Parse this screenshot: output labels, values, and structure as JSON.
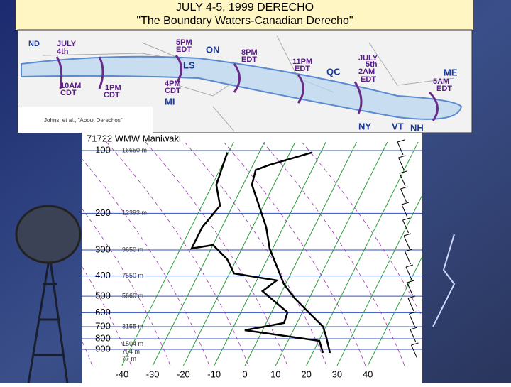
{
  "slide": {
    "title": "JULY 4-5, 1999 DERECHO",
    "subtitle": "\"The Boundary Waters-Canadian Derecho\"",
    "map": {
      "labels": [
        "ND",
        "JULY",
        "4th",
        "10AM",
        "CDT",
        "1PM",
        "CDT",
        "5PM",
        "EDT",
        "ON",
        "8PM",
        "EDT",
        "LS",
        "4PM",
        "CDT",
        "MI",
        "11PM",
        "EDT",
        "QC",
        "JULY",
        "5th",
        "2AM",
        "EDT",
        "ME",
        "5AM",
        "EDT",
        "NY",
        "VT",
        "NH"
      ],
      "credit": "Johns, et al., \"About Derechos\""
    },
    "sounding": {
      "station": "71722 WMW Maniwaki",
      "pressure_ticks": [
        100,
        200,
        300,
        400,
        500,
        600,
        700,
        800,
        900
      ],
      "height_labels": [
        {
          "value": 100,
          "label": "16650 m"
        },
        {
          "value": 200,
          "label": "12393 m"
        },
        {
          "value": 300,
          "label": "9650 m"
        },
        {
          "value": 400,
          "label": "7550 m"
        },
        {
          "value": 500,
          "label": "5660 m"
        },
        {
          "value": 700,
          "label": "3155 m"
        },
        {
          "value": 850,
          "label": "1504 m"
        },
        {
          "value": 925,
          "label": "764 m"
        },
        {
          "value": 1000,
          "label": "77 m"
        }
      ],
      "temperature_ticks": [
        -40,
        -30,
        -20,
        -10,
        0,
        10,
        20,
        30,
        40
      ],
      "temperature": {
        "pressure": [
          936,
          788,
          700,
          598,
          511,
          437,
          359,
          295,
          233,
          184,
          146,
          124,
          117,
          102
        ],
        "values": [
          25.6,
          21.9,
          19.1,
          12.1,
          5.2,
          -0.6,
          -5.8,
          -11.0,
          -15.6,
          -21.4,
          -27.1,
          -28.3,
          -24.6,
          -12.7
        ]
      },
      "dewpoint": {
        "pressure": [
          936,
          819,
          728,
          673,
          598,
          473,
          420,
          389,
          332,
          284,
          295,
          233,
          184,
          146,
          102
        ],
        "values": [
          23.3,
          20.2,
          -5.8,
          5.8,
          5.2,
          -6.4,
          -3.5,
          -18.5,
          -23.1,
          -30.0,
          -36.4,
          -36.4,
          -34.1,
          -38.7,
          -40.4
        ]
      }
    }
  }
}
